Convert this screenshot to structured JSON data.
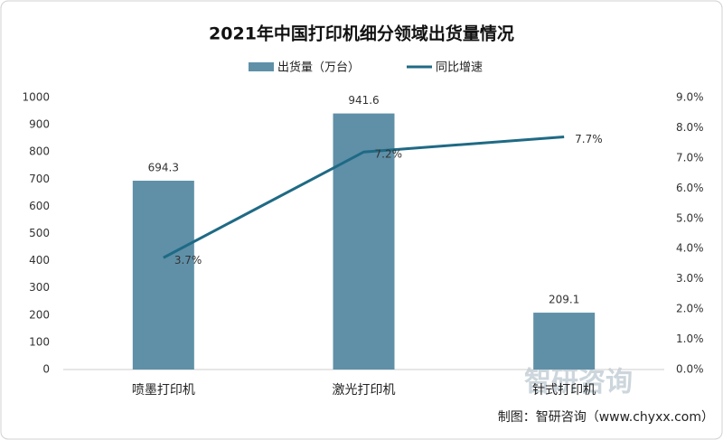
{
  "chart_data": {
    "type": "bar-line",
    "title": "2021年中国打印机细分领域出货量情况",
    "categories": [
      "喷墨打印机",
      "激光打印机",
      "针式打印机"
    ],
    "series": [
      {
        "name": "出货量（万台）",
        "color": "#5f90a8",
        "type": "bar",
        "values": [
          694.3,
          941.6,
          209.1
        ]
      },
      {
        "name": "同比增速",
        "color": "#1f6a85",
        "type": "line",
        "axis": "y2",
        "values": [
          3.7,
          7.2,
          7.7
        ],
        "value_labels": [
          "3.7%",
          "7.2%",
          "7.7%"
        ]
      }
    ],
    "ylim": [
      0,
      1000
    ],
    "yticks": [
      0,
      100,
      200,
      300,
      400,
      500,
      600,
      700,
      800,
      900,
      1000
    ],
    "y2lim": [
      0,
      9
    ],
    "y2ticks": [
      {
        "value": 0,
        "label": "0.0%"
      },
      {
        "value": 1,
        "label": "1.0%"
      },
      {
        "value": 2,
        "label": "2.0%"
      },
      {
        "value": 3,
        "label": "3.0%"
      },
      {
        "value": 4,
        "label": "4.0%"
      },
      {
        "value": 5,
        "label": "5.0%"
      },
      {
        "value": 6,
        "label": "6.0%"
      },
      {
        "value": 7,
        "label": "7.0%"
      },
      {
        "value": 8,
        "label": "8.0%"
      },
      {
        "value": 9,
        "label": "9.0%"
      }
    ],
    "legend": "top",
    "source": "制图：智研咨询（www.chyxx.com）",
    "watermark": "智研咨询"
  }
}
